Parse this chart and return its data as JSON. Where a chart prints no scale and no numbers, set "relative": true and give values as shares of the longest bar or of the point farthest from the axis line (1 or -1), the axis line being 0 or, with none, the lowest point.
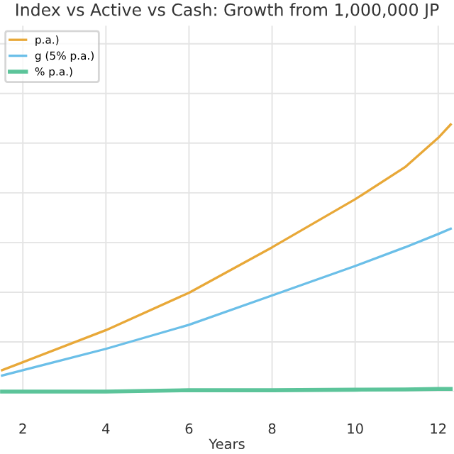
{
  "chart_data": {
    "type": "line",
    "title": "Index vs Active vs Cash: Growth from 1,000,000 JP",
    "xlabel": "Years",
    "relative": true,
    "x": [
      1.5,
      2,
      4,
      6,
      8,
      10,
      11.2,
      12,
      12.3
    ],
    "series": [
      {
        "name": "p.a.)",
        "color": "#e8a838",
        "values": [
          0.08,
          0.11,
          0.23,
          0.37,
          0.54,
          0.72,
          0.84,
          0.95,
          1
        ]
      },
      {
        "name": "g (5% p.a.)",
        "color": "#6bbfe8",
        "values": [
          0.06,
          0.08,
          0.16,
          0.25,
          0.36,
          0.47,
          0.54,
          0.59,
          0.61
        ]
      },
      {
        "name": "% p.a.)",
        "color": "#5cc49a",
        "values": [
          0,
          0,
          0,
          0.005,
          0.005,
          0.007,
          0.008,
          0.01,
          0.01
        ]
      }
    ],
    "xlim": [
      1.45,
      12.38
    ],
    "xticks": [
      2,
      4,
      6,
      8,
      10,
      12
    ],
    "tick_labels": "x",
    "grid": true,
    "legend": "top left",
    "line_style": "solid",
    "marker": "none"
  }
}
